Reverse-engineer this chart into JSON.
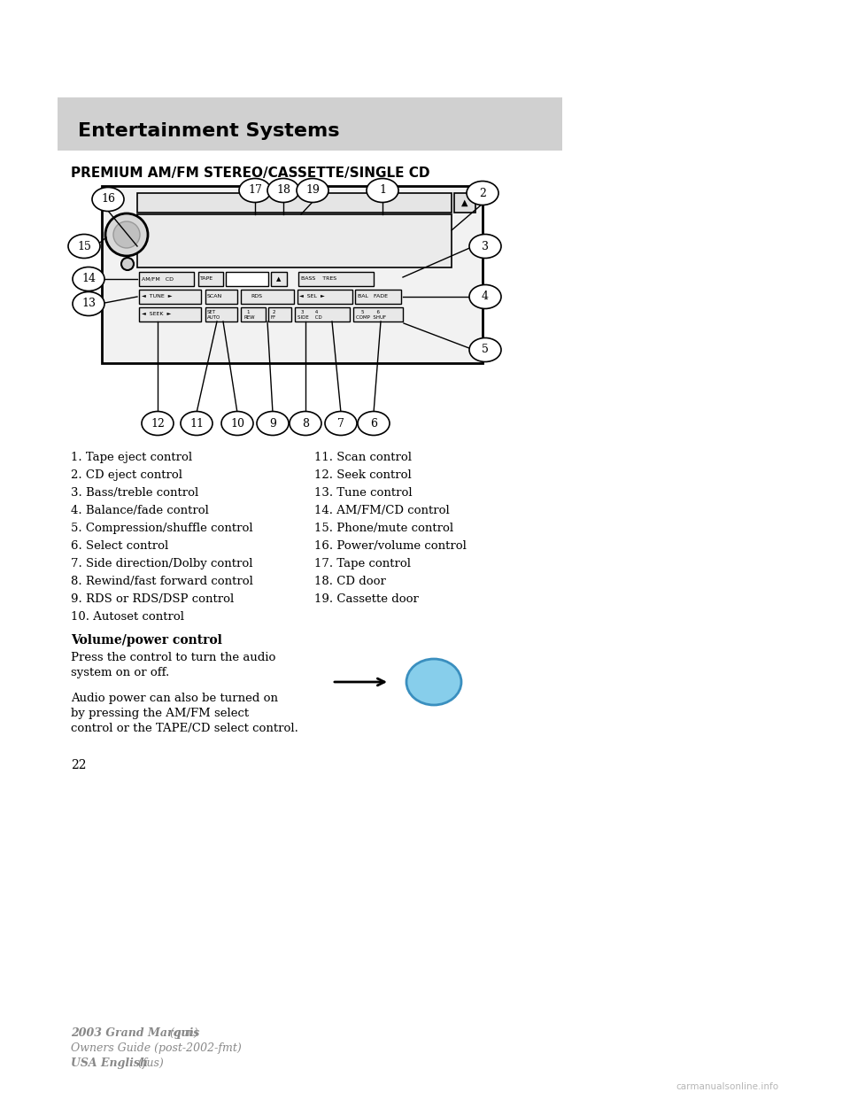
{
  "page_bg": "#ffffff",
  "header_bg": "#d0d0d0",
  "header_text": "Entertainment Systems",
  "subtitle": "PREMIUM AM/FM STEREO/CASSETTE/SINGLE CD",
  "left_items": [
    "1. Tape eject control",
    "2. CD eject control",
    "3. Bass/treble control",
    "4. Balance/fade control",
    "5. Compression/shuffle control",
    "6. Select control",
    "7. Side direction/Dolby control",
    "8. Rewind/fast forward control",
    "9. RDS or RDS/DSP control",
    "10. Autoset control"
  ],
  "right_items": [
    "11. Scan control",
    "12. Seek control",
    "13. Tune control",
    "14. AM/FM/CD control",
    "15. Phone/mute control",
    "16. Power/volume control",
    "17. Tape control",
    "18. CD door",
    "19. Cassette door"
  ],
  "bold_heading": "Volume/power control",
  "para1": "Press the control to turn the audio\nsystem on or off.",
  "para2": "Audio power can also be turned on\nby pressing the AM/FM select\ncontrol or the TAPE/CD select control.",
  "footer_line1_bold": "2003 Grand Marquis",
  "footer_line1_italic": " (grn)",
  "footer_line2": "Owners Guide (post-2002-fmt)",
  "footer_line3_bold": "USA English",
  "footer_line3_italic": " (fus)",
  "page_number": "22",
  "watermark": "carmanualsonline.info",
  "button_color": "#87ceeb",
  "footer_color": "#888888"
}
